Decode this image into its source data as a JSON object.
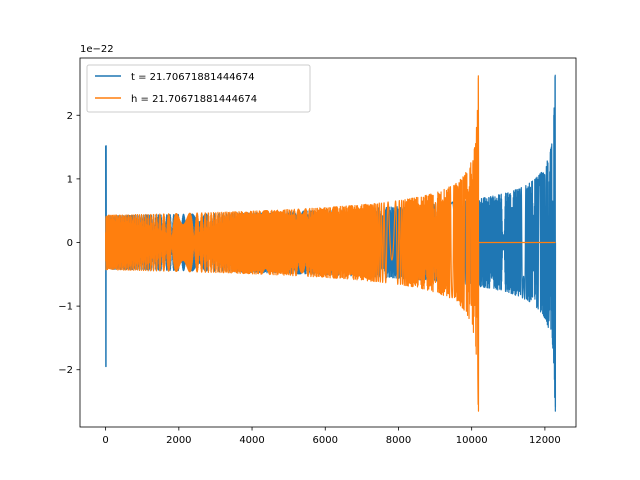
{
  "chart_data": {
    "type": "line",
    "title": "",
    "xlabel": "",
    "ylabel": "",
    "xlim": [
      -700,
      12850
    ],
    "ylim": [
      -2.9,
      2.9
    ],
    "y_offset_label": "1e−22",
    "grid": false,
    "legend_position": "top-left",
    "x_ticks": [
      {
        "value": 0,
        "label": "0"
      },
      {
        "value": 2000,
        "label": "2000"
      },
      {
        "value": 4000,
        "label": "4000"
      },
      {
        "value": 6000,
        "label": "6000"
      },
      {
        "value": 8000,
        "label": "8000"
      },
      {
        "value": 10000,
        "label": "10000"
      },
      {
        "value": 12000,
        "label": "12000"
      }
    ],
    "y_ticks": [
      {
        "value": -2,
        "label": "−2"
      },
      {
        "value": -1,
        "label": "−1"
      },
      {
        "value": 0,
        "label": "0"
      },
      {
        "value": 1,
        "label": "1"
      },
      {
        "value": 2,
        "label": "2"
      }
    ],
    "series": [
      {
        "name": "t = 21.70671881444674",
        "color": "#1f77b4",
        "x_start": 0,
        "x_end": 12290,
        "merger_x": 12290,
        "peak_amplitude": 2.63,
        "min_amplitude": -2.65,
        "initial_burst_amplitude": 1.52,
        "initial_burst_min": -1.95,
        "early_envelope": 0.42,
        "envelope_at_10200": 0.62,
        "after_merger_value": 0
      },
      {
        "name": "h = 21.70671881444674",
        "color": "#ff7f0e",
        "x_start": 0,
        "x_end": 12290,
        "merger_x": 10190,
        "peak_amplitude": 2.62,
        "min_amplitude": -2.65,
        "early_envelope": 0.42,
        "after_merger_value": 0
      }
    ]
  }
}
